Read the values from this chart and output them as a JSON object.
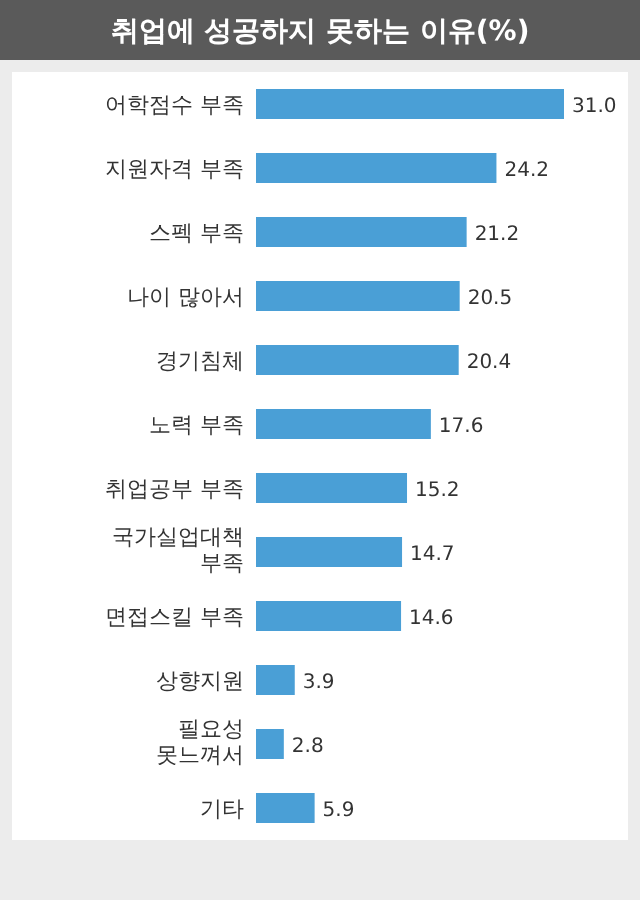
{
  "chart_data": {
    "type": "bar",
    "orientation": "horizontal",
    "title": "취업에 성공하지 못하는 이유(%)",
    "categories": [
      "어학점수 부족",
      "지원자격 부족",
      "스펙 부족",
      "나이 많아서",
      "경기침체",
      "노력 부족",
      "취업공부 부족",
      "국가실업대책 부족",
      "면접스킬 부족",
      "상향지원",
      "필요성 못느껴서",
      "기타"
    ],
    "values": [
      31.0,
      24.2,
      21.2,
      20.5,
      20.4,
      17.6,
      15.2,
      14.7,
      14.6,
      3.9,
      2.8,
      5.9
    ],
    "value_labels": [
      "31.0",
      "24.2",
      "21.2",
      "20.5",
      "20.4",
      "17.6",
      "15.2",
      "14.7",
      "14.6",
      "3.9",
      "2.8",
      "5.9"
    ],
    "color": "#4a9fd6"
  }
}
